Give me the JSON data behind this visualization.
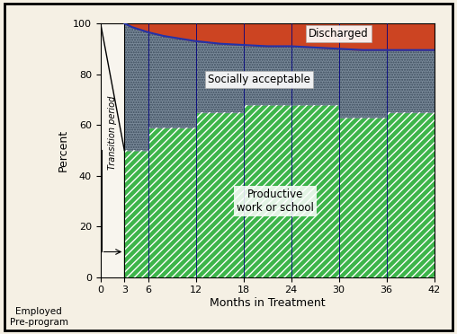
{
  "months_steps": [
    3,
    6,
    12,
    18,
    24,
    30,
    36,
    42
  ],
  "productive": [
    50,
    59,
    65,
    68,
    68,
    63,
    65,
    65
  ],
  "social_top": [
    97,
    92,
    89,
    87,
    87,
    86,
    87,
    88
  ],
  "discharged_curve_x": [
    3,
    4,
    5,
    6,
    8,
    10,
    12,
    15,
    18,
    21,
    24,
    27,
    30,
    33,
    36,
    39,
    42
  ],
  "discharged_curve_y": [
    100,
    98.5,
    97.5,
    96.5,
    95,
    94,
    93,
    92,
    91.5,
    91,
    91,
    90.5,
    90,
    89.5,
    89.5,
    89.5,
    89.5
  ],
  "green_color": "#3db54a",
  "gray_color": "#7a8a9a",
  "red_color": "#cc4422",
  "blue_color": "#2233aa",
  "bg_color": "#f5f0e4",
  "white_color": "#f8f5ee",
  "ylabel": "Percent",
  "xlabel": "Months in Treatment",
  "transition_label": "Transition period",
  "label_productive": "Productive\nwork or school",
  "label_social": "Socially acceptable",
  "label_discharged": "Discharged",
  "label_employed": "Employed\nPre-program",
  "yticks": [
    0,
    20,
    40,
    60,
    80,
    100
  ],
  "xticks": [
    0,
    3,
    6,
    12,
    18,
    24,
    30,
    36,
    42
  ]
}
